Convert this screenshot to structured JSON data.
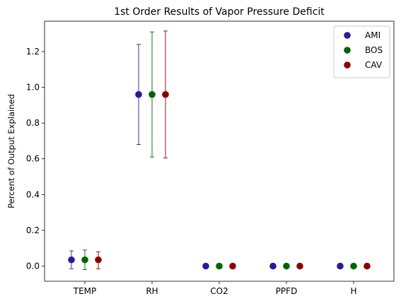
{
  "chart_data": {
    "type": "scatter",
    "title": "1st Order Results of Vapor Pressure Deficit",
    "xlabel": "",
    "ylabel": "Percent of Output Explained",
    "categories": [
      "TEMP",
      "RH",
      "CO2",
      "PPFD",
      "H"
    ],
    "ylim": [
      -0.085,
      1.37
    ],
    "yticks": [
      "0.0",
      "0.2",
      "0.4",
      "0.6",
      "0.8",
      "1.0",
      "1.2"
    ],
    "grid": false,
    "legend_position": "top-right",
    "series": [
      {
        "name": "AMI",
        "color": "#2a1a99",
        "values": [
          0.035,
          0.96,
          0.0,
          0.0,
          0.0
        ],
        "err_low": [
          -0.015,
          0.68,
          0.0,
          0.0,
          0.0
        ],
        "err_high": [
          0.085,
          1.24,
          0.0,
          0.0,
          0.0
        ]
      },
      {
        "name": "BOS",
        "color": "#006400",
        "values": [
          0.035,
          0.96,
          0.0,
          0.0,
          0.0
        ],
        "err_low": [
          -0.02,
          0.61,
          0.0,
          0.0,
          0.0
        ],
        "err_high": [
          0.09,
          1.31,
          0.0,
          0.0,
          0.0
        ]
      },
      {
        "name": "CAV",
        "color": "#8b0000",
        "values": [
          0.035,
          0.96,
          0.0,
          0.0,
          0.0
        ],
        "err_low": [
          -0.015,
          0.605,
          0.0,
          0.0,
          0.0
        ],
        "err_high": [
          0.08,
          1.315,
          0.0,
          0.0,
          0.0
        ]
      }
    ]
  }
}
